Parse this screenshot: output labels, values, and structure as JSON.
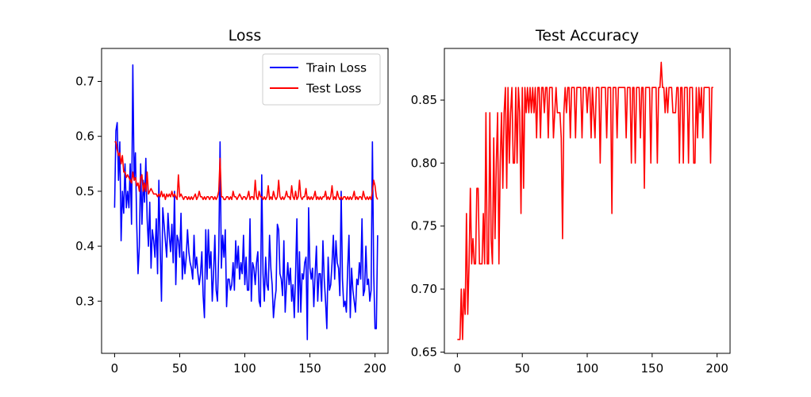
{
  "chart_data": [
    {
      "type": "line",
      "title": "Loss",
      "xlabel": "",
      "ylabel": "",
      "xlim": [
        -10,
        210
      ],
      "ylim": [
        0.205,
        0.76
      ],
      "grid": false,
      "legend": "top-right",
      "x_ticks": [
        0,
        50,
        100,
        150,
        200
      ],
      "y_ticks": [
        0.3,
        0.4,
        0.5,
        0.6,
        0.7
      ],
      "x_tick_labels": [
        "0",
        "50",
        "100",
        "150",
        "200"
      ],
      "y_tick_labels": [
        "0.3",
        "0.4",
        "0.5",
        "0.6",
        "0.7"
      ],
      "series": [
        {
          "name": "Train Loss",
          "color": "#0000ff",
          "values": [
            0.47,
            0.61,
            0.625,
            0.52,
            0.59,
            0.41,
            0.5,
            0.46,
            0.55,
            0.47,
            0.5,
            0.47,
            0.55,
            0.44,
            0.73,
            0.52,
            0.57,
            0.44,
            0.35,
            0.4,
            0.55,
            0.44,
            0.52,
            0.48,
            0.56,
            0.45,
            0.4,
            0.48,
            0.36,
            0.43,
            0.41,
            0.38,
            0.45,
            0.35,
            0.52,
            0.4,
            0.3,
            0.47,
            0.44,
            0.41,
            0.38,
            0.46,
            0.42,
            0.39,
            0.44,
            0.37,
            0.5,
            0.33,
            0.42,
            0.41,
            0.38,
            0.46,
            0.34,
            0.39,
            0.35,
            0.38,
            0.43,
            0.39,
            0.37,
            0.36,
            0.34,
            0.42,
            0.36,
            0.38,
            0.35,
            0.33,
            0.35,
            0.39,
            0.31,
            0.27,
            0.43,
            0.34,
            0.43,
            0.36,
            0.39,
            0.3,
            0.35,
            0.42,
            0.32,
            0.3,
            0.39,
            0.59,
            0.36,
            0.42,
            0.38,
            0.43,
            0.29,
            0.34,
            0.34,
            0.32,
            0.33,
            0.37,
            0.32,
            0.41,
            0.36,
            0.4,
            0.34,
            0.37,
            0.35,
            0.42,
            0.33,
            0.38,
            0.32,
            0.32,
            0.45,
            0.3,
            0.37,
            0.36,
            0.33,
            0.37,
            0.39,
            0.3,
            0.29,
            0.53,
            0.35,
            0.3,
            0.38,
            0.33,
            0.32,
            0.42,
            0.36,
            0.33,
            0.27,
            0.3,
            0.32,
            0.44,
            0.43,
            0.35,
            0.34,
            0.31,
            0.41,
            0.28,
            0.33,
            0.37,
            0.33,
            0.36,
            0.3,
            0.33,
            0.27,
            0.35,
            0.45,
            0.28,
            0.39,
            0.28,
            0.35,
            0.34,
            0.37,
            0.38,
            0.23,
            0.47,
            0.36,
            0.34,
            0.36,
            0.29,
            0.35,
            0.4,
            0.3,
            0.35,
            0.35,
            0.3,
            0.41,
            0.34,
            0.3,
            0.25,
            0.38,
            0.32,
            0.33,
            0.37,
            0.42,
            0.34,
            0.41,
            0.37,
            0.36,
            0.31,
            0.5,
            0.34,
            0.29,
            0.3,
            0.28,
            0.36,
            0.42,
            0.27,
            0.36,
            0.32,
            0.3,
            0.28,
            0.34,
            0.33,
            0.37,
            0.34,
            0.45,
            0.31,
            0.32,
            0.4,
            0.33,
            0.34,
            0.3,
            0.32,
            0.59,
            0.35,
            0.25,
            0.25,
            0.42
          ]
        },
        {
          "name": "Test Loss",
          "color": "#ff0000",
          "values": [
            0.59,
            0.59,
            0.575,
            0.565,
            0.57,
            0.55,
            0.565,
            0.535,
            0.535,
            0.525,
            0.53,
            0.525,
            0.52,
            0.515,
            0.535,
            0.52,
            0.525,
            0.51,
            0.515,
            0.5,
            0.525,
            0.53,
            0.5,
            0.515,
            0.5,
            0.535,
            0.495,
            0.5,
            0.505,
            0.5,
            0.495,
            0.495,
            0.495,
            0.49,
            0.495,
            0.49,
            0.5,
            0.49,
            0.495,
            0.485,
            0.495,
            0.49,
            0.495,
            0.49,
            0.5,
            0.49,
            0.495,
            0.49,
            0.485,
            0.53,
            0.49,
            0.495,
            0.49,
            0.485,
            0.49,
            0.49,
            0.485,
            0.49,
            0.485,
            0.49,
            0.485,
            0.49,
            0.495,
            0.485,
            0.49,
            0.5,
            0.49,
            0.49,
            0.485,
            0.49,
            0.485,
            0.49,
            0.49,
            0.485,
            0.49,
            0.49,
            0.485,
            0.49,
            0.485,
            0.49,
            0.5,
            0.56,
            0.49,
            0.49,
            0.485,
            0.485,
            0.49,
            0.49,
            0.485,
            0.49,
            0.485,
            0.5,
            0.49,
            0.49,
            0.485,
            0.49,
            0.495,
            0.49,
            0.485,
            0.49,
            0.49,
            0.485,
            0.49,
            0.5,
            0.485,
            0.49,
            0.49,
            0.485,
            0.52,
            0.49,
            0.485,
            0.5,
            0.49,
            0.49,
            0.485,
            0.49,
            0.485,
            0.49,
            0.51,
            0.485,
            0.49,
            0.485,
            0.5,
            0.49,
            0.485,
            0.49,
            0.52,
            0.49,
            0.485,
            0.49,
            0.485,
            0.49,
            0.5,
            0.49,
            0.49,
            0.485,
            0.51,
            0.49,
            0.485,
            0.5,
            0.485,
            0.49,
            0.52,
            0.49,
            0.485,
            0.49,
            0.49,
            0.505,
            0.485,
            0.49,
            0.485,
            0.49,
            0.485,
            0.49,
            0.5,
            0.485,
            0.49,
            0.485,
            0.49,
            0.485,
            0.49,
            0.49,
            0.5,
            0.485,
            0.49,
            0.485,
            0.49,
            0.51,
            0.485,
            0.49,
            0.485,
            0.5,
            0.49,
            0.485,
            0.49,
            0.485,
            0.49,
            0.49,
            0.485,
            0.49,
            0.485,
            0.49,
            0.485,
            0.49,
            0.5,
            0.485,
            0.49,
            0.485,
            0.49,
            0.49,
            0.485,
            0.5,
            0.49,
            0.485,
            0.49,
            0.485,
            0.49,
            0.485,
            0.5,
            0.52,
            0.51,
            0.49,
            0.485
          ]
        }
      ]
    },
    {
      "type": "line",
      "title": "Test Accuracy",
      "xlabel": "",
      "ylabel": "",
      "xlim": [
        -10,
        210
      ],
      "ylim": [
        0.649,
        0.891
      ],
      "grid": false,
      "x_ticks": [
        0,
        50,
        100,
        150,
        200
      ],
      "y_ticks": [
        0.65,
        0.7,
        0.75,
        0.8,
        0.85
      ],
      "x_tick_labels": [
        "0",
        "50",
        "100",
        "150",
        "200"
      ],
      "y_tick_labels": [
        "0.65",
        "0.70",
        "0.75",
        "0.80",
        "0.85"
      ],
      "series": [
        {
          "color": "#ff0000",
          "values": [
            0.66,
            0.66,
            0.66,
            0.7,
            0.66,
            0.7,
            0.68,
            0.76,
            0.68,
            0.72,
            0.78,
            0.72,
            0.74,
            0.72,
            0.72,
            0.78,
            0.78,
            0.72,
            0.72,
            0.72,
            0.76,
            0.72,
            0.84,
            0.72,
            0.72,
            0.84,
            0.74,
            0.72,
            0.82,
            0.74,
            0.8,
            0.84,
            0.72,
            0.8,
            0.84,
            0.78,
            0.84,
            0.86,
            0.78,
            0.86,
            0.8,
            0.84,
            0.86,
            0.8,
            0.8,
            0.86,
            0.8,
            0.86,
            0.84,
            0.76,
            0.86,
            0.78,
            0.86,
            0.84,
            0.86,
            0.84,
            0.86,
            0.84,
            0.86,
            0.84,
            0.86,
            0.82,
            0.86,
            0.86,
            0.82,
            0.86,
            0.86,
            0.84,
            0.86,
            0.86,
            0.82,
            0.86,
            0.86,
            0.86,
            0.82,
            0.84,
            0.86,
            0.84,
            0.84,
            0.84,
            0.82,
            0.74,
            0.84,
            0.86,
            0.84,
            0.86,
            0.86,
            0.82,
            0.86,
            0.86,
            0.86,
            0.82,
            0.86,
            0.86,
            0.86,
            0.86,
            0.82,
            0.86,
            0.86,
            0.86,
            0.84,
            0.86,
            0.86,
            0.82,
            0.86,
            0.84,
            0.82,
            0.86,
            0.86,
            0.86,
            0.8,
            0.86,
            0.86,
            0.86,
            0.86,
            0.82,
            0.86,
            0.86,
            0.86,
            0.76,
            0.86,
            0.86,
            0.86,
            0.82,
            0.86,
            0.86,
            0.86,
            0.86,
            0.86,
            0.86,
            0.82,
            0.86,
            0.86,
            0.86,
            0.8,
            0.86,
            0.86,
            0.8,
            0.86,
            0.86,
            0.86,
            0.82,
            0.86,
            0.86,
            0.78,
            0.86,
            0.86,
            0.86,
            0.86,
            0.8,
            0.86,
            0.86,
            0.86,
            0.86,
            0.8,
            0.86,
            0.86,
            0.88,
            0.86,
            0.86,
            0.84,
            0.86,
            0.84,
            0.86,
            0.86,
            0.86,
            0.84,
            0.84,
            0.84,
            0.86,
            0.86,
            0.8,
            0.86,
            0.86,
            0.8,
            0.86,
            0.86,
            0.86,
            0.8,
            0.86,
            0.86,
            0.86,
            0.8,
            0.8,
            0.86,
            0.82,
            0.86,
            0.84,
            0.86,
            0.82,
            0.86,
            0.86,
            0.86,
            0.86,
            0.86,
            0.8,
            0.86,
            0.86
          ]
        }
      ]
    }
  ]
}
